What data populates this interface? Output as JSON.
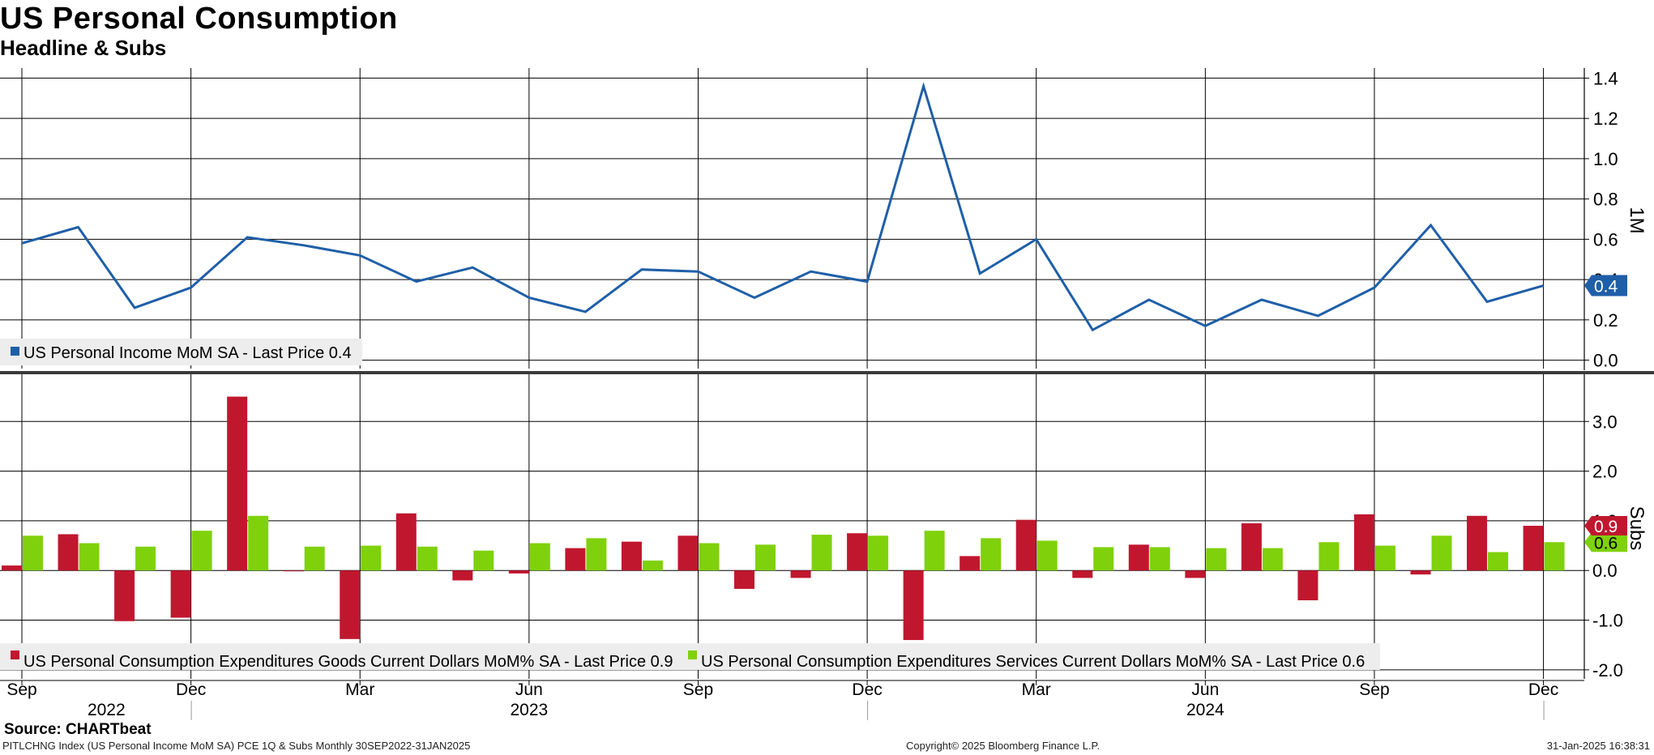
{
  "header": {
    "title": "US Personal Consumption",
    "subtitle": "Headline & Subs"
  },
  "footer": {
    "source": "Source: CHARTbeat",
    "ticker_info": "PITLCHNG Index (US Personal Income MoM SA) PCE 1Q & Subs  Monthly 30SEP2022-31JAN2025",
    "copyright": "Copyright© 2025 Bloomberg Finance L.P.",
    "timestamp": "31-Jan-2025 16:38:31"
  },
  "colors": {
    "income": "#1f5fa8",
    "goods": "#c0172f",
    "services": "#7fd10b",
    "grid": "#000000"
  },
  "chart_data": [
    {
      "type": "line",
      "panel": "top",
      "axis_label": "1M",
      "ylim": [
        -0.05,
        1.45
      ],
      "yticks": [
        "0.0",
        "0.2",
        "0.4",
        "0.6",
        "0.8",
        "1.0",
        "1.2",
        "1.4"
      ],
      "x": [
        "2022-09",
        "2022-10",
        "2022-11",
        "2022-12",
        "2023-01",
        "2023-02",
        "2023-03",
        "2023-04",
        "2023-05",
        "2023-06",
        "2023-07",
        "2023-08",
        "2023-09",
        "2023-10",
        "2023-11",
        "2023-12",
        "2024-01",
        "2024-02",
        "2024-03",
        "2024-04",
        "2024-05",
        "2024-06",
        "2024-07",
        "2024-08",
        "2024-09",
        "2024-10",
        "2024-11",
        "2024-12"
      ],
      "series": [
        {
          "name": "US Personal Income MoM SA",
          "legend": "US Personal Income MoM SA - Last Price 0.4",
          "last_value_label": "0.4",
          "values": [
            0.58,
            0.66,
            0.26,
            0.36,
            0.61,
            0.57,
            0.52,
            0.39,
            0.46,
            0.31,
            0.24,
            0.45,
            0.44,
            0.31,
            0.44,
            0.39,
            1.36,
            0.43,
            0.6,
            0.15,
            0.3,
            0.17,
            0.3,
            0.22,
            0.36,
            0.67,
            0.29,
            0.37
          ]
        }
      ]
    },
    {
      "type": "bar",
      "panel": "bottom",
      "axis_label": "Subs",
      "ylim": [
        -2.1,
        3.95
      ],
      "yticks": [
        "-2.0",
        "-1.0",
        "0.0",
        "1.0",
        "2.0",
        "3.0"
      ],
      "x": [
        "2022-09",
        "2022-10",
        "2022-11",
        "2022-12",
        "2023-01",
        "2023-02",
        "2023-03",
        "2023-04",
        "2023-05",
        "2023-06",
        "2023-07",
        "2023-08",
        "2023-09",
        "2023-10",
        "2023-11",
        "2023-12",
        "2024-01",
        "2024-02",
        "2024-03",
        "2024-04",
        "2024-05",
        "2024-06",
        "2024-07",
        "2024-08",
        "2024-09",
        "2024-10",
        "2024-11",
        "2024-12"
      ],
      "series": [
        {
          "name": "US Personal Consumption Expenditures Goods Current Dollars MoM% SA",
          "legend": "US Personal Consumption Expenditures Goods Current Dollars MoM% SA - Last Price 0.9",
          "last_value_label": "0.9",
          "values": [
            0.1,
            0.73,
            -1.02,
            -0.95,
            3.5,
            0.0,
            -1.38,
            1.15,
            -0.2,
            -0.06,
            0.45,
            0.58,
            0.7,
            -0.37,
            -0.15,
            0.75,
            -1.4,
            0.29,
            1.02,
            -0.15,
            0.52,
            -0.15,
            0.95,
            -0.6,
            1.13,
            -0.08,
            1.1,
            0.9
          ]
        },
        {
          "name": "US Personal Consumption Expenditures Services Current Dollars MoM% SA",
          "legend": "US Personal Consumption Expenditures Services Current Dollars MoM% SA - Last Price 0.6",
          "last_value_label": "0.6",
          "values": [
            0.7,
            0.55,
            0.48,
            0.8,
            1.1,
            0.48,
            0.5,
            0.48,
            0.4,
            0.55,
            0.65,
            0.2,
            0.55,
            0.52,
            0.72,
            0.7,
            0.8,
            0.65,
            0.6,
            0.47,
            0.47,
            0.45,
            0.45,
            0.57,
            0.5,
            0.7,
            0.37,
            0.57
          ]
        }
      ]
    }
  ],
  "x_axis": {
    "month_labels": [
      {
        "index": 0,
        "label": "Sep"
      },
      {
        "index": 3,
        "label": "Dec"
      },
      {
        "index": 6,
        "label": "Mar"
      },
      {
        "index": 9,
        "label": "Jun"
      },
      {
        "index": 12,
        "label": "Sep"
      },
      {
        "index": 15,
        "label": "Dec"
      },
      {
        "index": 18,
        "label": "Mar"
      },
      {
        "index": 21,
        "label": "Jun"
      },
      {
        "index": 24,
        "label": "Sep"
      },
      {
        "index": 27,
        "label": "Dec"
      }
    ],
    "year_labels": [
      {
        "label": "2022",
        "from": 0,
        "to": 3
      },
      {
        "label": "2023",
        "from": 3,
        "to": 15
      },
      {
        "label": "2024",
        "from": 15,
        "to": 27
      }
    ]
  }
}
